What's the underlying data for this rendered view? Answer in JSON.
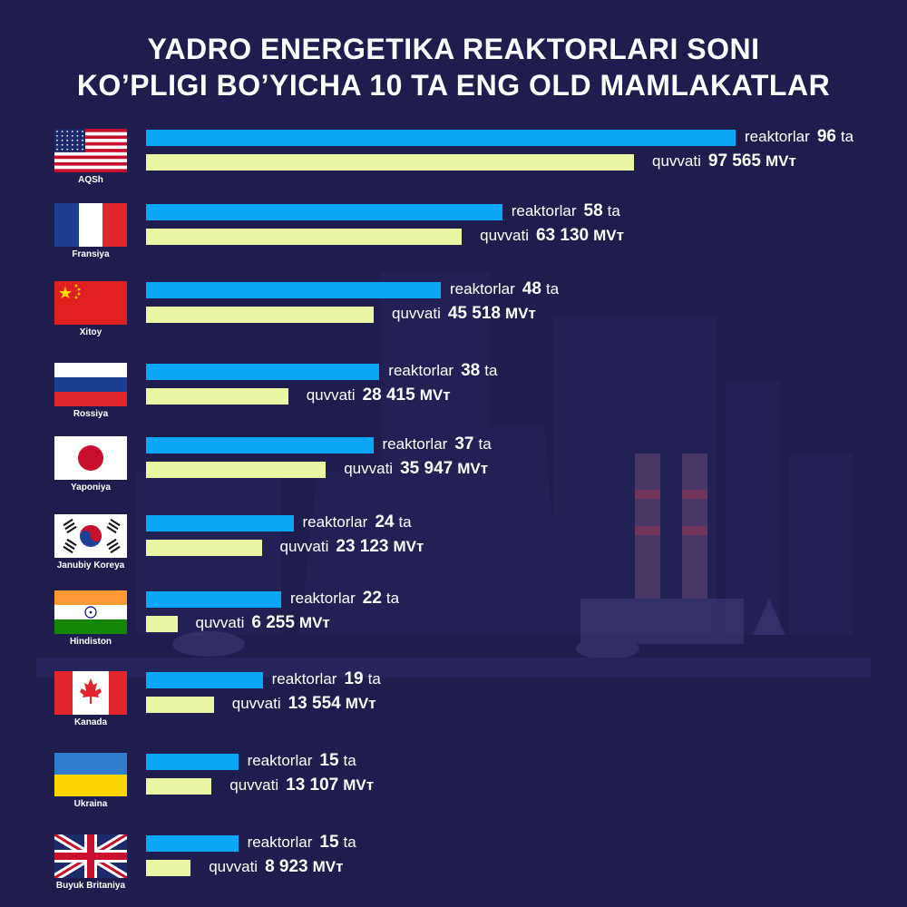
{
  "title_lines": [
    "YADRO ENERGETIKA REAKTORLARI SONI",
    "KO’PLIGI BO’YICHA 10 TA ENG OLD MAMLAKATLAR"
  ],
  "colors": {
    "background": "#1e1d4e",
    "reactor_bar": "#0aa7f5",
    "power_bar": "#eaf6a3",
    "text": "#ffffff"
  },
  "labels": {
    "reactors_word": "reaktorlar",
    "reactors_unit": "ta",
    "power_word": "quvvati",
    "power_unit": "MVт"
  },
  "chart_data": {
    "type": "bar",
    "orientation": "horizontal",
    "title": "YADRO ENERGETIKA REAKTORLARI SONI KO’PLIGI BO’YICHA 10 TA ENG OLD MAMLAKATLAR",
    "categories": [
      "AQSh",
      "Fransiya",
      "Xitoy",
      "Rossiya",
      "Yaponiya",
      "Janubiy Koreya",
      "Hindiston",
      "Kanada",
      "Ukraina",
      "Buyuk Britaniya"
    ],
    "flags": [
      "usa-flag-icon",
      "france-flag-icon",
      "china-flag-icon",
      "russia-flag-icon",
      "japan-flag-icon",
      "south-korea-flag-icon",
      "india-flag-icon",
      "canada-flag-icon",
      "ukraine-flag-icon",
      "uk-flag-icon"
    ],
    "series": [
      {
        "name": "reaktorlar",
        "unit": "ta",
        "values": [
          96,
          58,
          48,
          38,
          37,
          24,
          22,
          19,
          15,
          15
        ]
      },
      {
        "name": "quvvati",
        "unit": "MVт",
        "values": [
          97565,
          63130,
          45518,
          28415,
          35947,
          23123,
          6255,
          13554,
          13107,
          8923
        ]
      }
    ],
    "display_values": {
      "reaktorlar": [
        "96",
        "58",
        "48",
        "38",
        "37",
        "24",
        "22",
        "19",
        "15",
        "15"
      ],
      "quvvati": [
        "97 565",
        "63 130",
        "45 518",
        "28 415",
        "35 947",
        "23 123",
        "6 255",
        "13 554",
        "13 107",
        "8 923"
      ]
    },
    "legend": "none",
    "grid": false
  }
}
